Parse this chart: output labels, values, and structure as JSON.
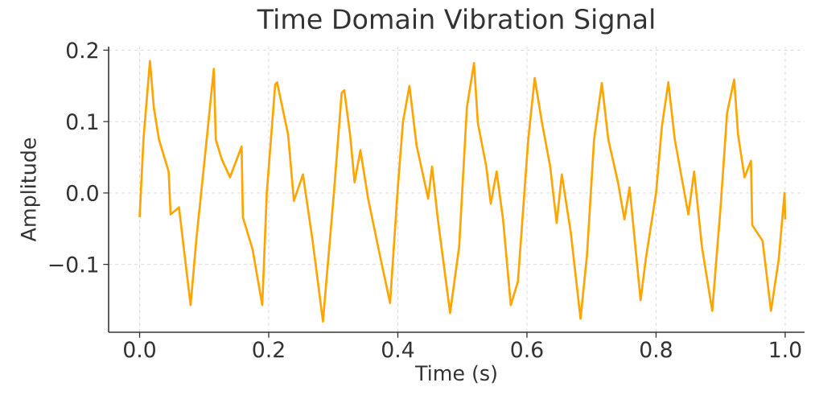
{
  "chart_data": {
    "type": "line",
    "title": "Time Domain Vibration Signal",
    "xlabel": "Time (s)",
    "ylabel": "Amplitude",
    "x": [
      0.0,
      0.006,
      0.016,
      0.022,
      0.03,
      0.045,
      0.048,
      0.061,
      0.069,
      0.079,
      0.088,
      0.103,
      0.115,
      0.118,
      0.127,
      0.14,
      0.158,
      0.16,
      0.175,
      0.19,
      0.197,
      0.21,
      0.213,
      0.23,
      0.239,
      0.253,
      0.268,
      0.284,
      0.301,
      0.313,
      0.317,
      0.326,
      0.333,
      0.342,
      0.354,
      0.371,
      0.388,
      0.4,
      0.408,
      0.418,
      0.429,
      0.447,
      0.453,
      0.462,
      0.481,
      0.495,
      0.507,
      0.518,
      0.524,
      0.537,
      0.544,
      0.553,
      0.563,
      0.575,
      0.586,
      0.602,
      0.612,
      0.623,
      0.636,
      0.646,
      0.654,
      0.668,
      0.683,
      0.693,
      0.704,
      0.716,
      0.726,
      0.741,
      0.751,
      0.759,
      0.776,
      0.784,
      0.8,
      0.809,
      0.819,
      0.829,
      0.841,
      0.85,
      0.859,
      0.871,
      0.887,
      0.9,
      0.91,
      0.921,
      0.927,
      0.937,
      0.947,
      0.949,
      0.965,
      0.978,
      0.99,
      0.999,
      1.0
    ],
    "values": [
      -0.034,
      0.075,
      0.185,
      0.12,
      0.075,
      0.03,
      -0.03,
      -0.02,
      -0.082,
      -0.157,
      -0.064,
      0.067,
      0.174,
      0.075,
      0.048,
      0.022,
      0.065,
      -0.034,
      -0.079,
      -0.157,
      0.0,
      0.152,
      0.155,
      0.082,
      -0.011,
      0.026,
      -0.067,
      -0.18,
      0.0,
      0.14,
      0.144,
      0.082,
      0.015,
      0.06,
      -0.008,
      -0.082,
      -0.154,
      0.008,
      0.1,
      0.15,
      0.067,
      -0.008,
      0.037,
      -0.037,
      -0.168,
      -0.075,
      0.12,
      0.182,
      0.098,
      0.037,
      -0.015,
      0.03,
      -0.037,
      -0.157,
      -0.124,
      0.075,
      0.161,
      0.1,
      0.037,
      -0.042,
      0.026,
      -0.056,
      -0.176,
      -0.087,
      0.075,
      0.154,
      0.075,
      0.015,
      -0.037,
      0.008,
      -0.15,
      -0.093,
      0.0,
      0.093,
      0.155,
      0.075,
      0.015,
      -0.03,
      0.03,
      -0.075,
      -0.165,
      -0.019,
      0.112,
      0.159,
      0.082,
      0.022,
      0.045,
      -0.045,
      -0.067,
      -0.165,
      -0.093,
      0.0,
      -0.037
    ],
    "color": "#ffa500",
    "line_style": "solid",
    "grid": true,
    "xlim": [
      -0.048,
      1.03
    ],
    "ylim": [
      -0.195,
      0.205
    ],
    "xticks": [
      {
        "value": 0,
        "label": "0.0"
      },
      {
        "value": 0.2,
        "label": "0.2"
      },
      {
        "value": 0.4,
        "label": "0.4"
      },
      {
        "value": 0.6,
        "label": "0.6"
      },
      {
        "value": 0.8,
        "label": "0.8"
      },
      {
        "value": 1.0,
        "label": "1.0"
      }
    ],
    "yticks": [
      {
        "value": -0.1,
        "label": "−0.1"
      },
      {
        "value": 0.0,
        "label": "0.0"
      },
      {
        "value": 0.1,
        "label": "0.1"
      },
      {
        "value": 0.2,
        "label": "0.2"
      }
    ]
  }
}
